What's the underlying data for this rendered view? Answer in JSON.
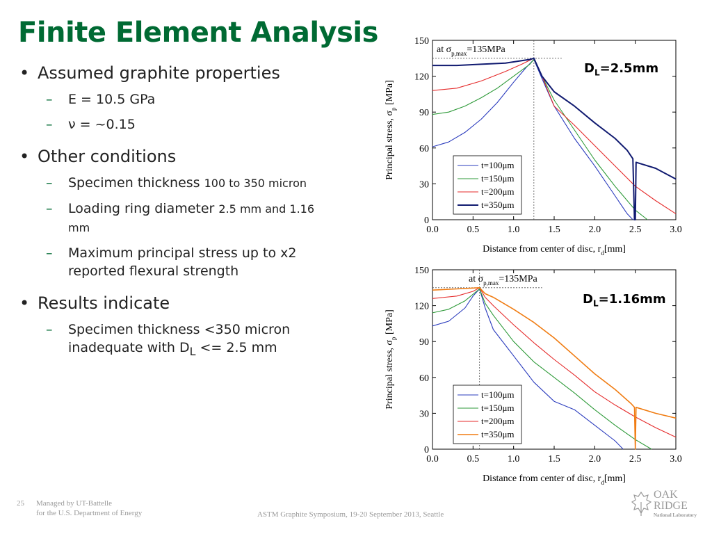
{
  "slide": {
    "title": "Finite Element Analysis",
    "page_number": "25",
    "managed_by": "Managed by UT-Battelle",
    "managed_by_2": "for the U.S. Department of Energy",
    "conference": "ASTM Graphite Symposium, 19-20 September 2013, Seattle",
    "logo": {
      "line1": "OAK",
      "line2": "RIDGE",
      "line3": "National Laboratory"
    }
  },
  "bullets": [
    {
      "text": "Assumed graphite properties",
      "subs": [
        {
          "text": "E = 10.5 GPa"
        },
        {
          "text": "ν = ~0.15"
        }
      ]
    },
    {
      "text": "Other conditions",
      "subs": [
        {
          "text": "Specimen thickness ",
          "small": "100 to 350 micron"
        },
        {
          "text": "Loading ring diameter ",
          "small": "2.5 mm and 1.16 mm"
        },
        {
          "text": "Maximum principal stress up to x2 reported flexural strength"
        }
      ]
    },
    {
      "text": "Results indicate",
      "subs": [
        {
          "text": "Specimen thickness <350 micron inadequate with D",
          "sub": "L",
          "after": " <= 2.5 mm"
        }
      ]
    }
  ],
  "chart_data": [
    {
      "type": "line",
      "label": {
        "main": "D",
        "sub": "L",
        "rest": "=2.5mm"
      },
      "xlabel": "Distance from center of disc, r",
      "xlabel_sub": "d",
      "xlabel_after": "[mm]",
      "ylabel": "Principal stress, σ",
      "ylabel_sub": "p",
      "ylabel_after": " [MPa]",
      "xlim": [
        0,
        3
      ],
      "ylim": [
        0,
        150
      ],
      "xticks": [
        "0.0",
        "0.5",
        "1.0",
        "1.5",
        "2.0",
        "2.5",
        "3.0"
      ],
      "yticks": [
        "0",
        "30",
        "60",
        "90",
        "120",
        "150"
      ],
      "annotation": {
        "prefix": "at σ",
        "sub": "p,max",
        "suffix": "=135MPa",
        "value": 135,
        "x": 1.25
      },
      "series": [
        {
          "name": "t=100μm",
          "color": "#2a3bbd",
          "points": [
            [
              0,
              61
            ],
            [
              0.2,
              65
            ],
            [
              0.4,
              73
            ],
            [
              0.6,
              84
            ],
            [
              0.8,
              98
            ],
            [
              1.0,
              115
            ],
            [
              1.15,
              127
            ],
            [
              1.25,
              134
            ],
            [
              1.35,
              118
            ],
            [
              1.5,
              95
            ],
            [
              1.75,
              68
            ],
            [
              2.0,
              45
            ],
            [
              2.2,
              25
            ],
            [
              2.4,
              5
            ],
            [
              2.47,
              0
            ]
          ]
        },
        {
          "name": "t=150μm",
          "color": "#2e9a39",
          "points": [
            [
              0,
              88
            ],
            [
              0.2,
              90
            ],
            [
              0.4,
              95
            ],
            [
              0.6,
              102
            ],
            [
              0.8,
              110
            ],
            [
              1.0,
              120
            ],
            [
              1.2,
              130
            ],
            [
              1.25,
              134
            ],
            [
              1.35,
              120
            ],
            [
              1.5,
              100
            ],
            [
              1.75,
              75
            ],
            [
              2.0,
              50
            ],
            [
              2.25,
              28
            ],
            [
              2.5,
              8
            ],
            [
              2.65,
              0
            ]
          ]
        },
        {
          "name": "t=200μm",
          "color": "#e52a2a",
          "points": [
            [
              0,
              108
            ],
            [
              0.3,
              110
            ],
            [
              0.6,
              116
            ],
            [
              0.9,
              124
            ],
            [
              1.1,
              130
            ],
            [
              1.25,
              135
            ],
            [
              1.35,
              120
            ],
            [
              1.5,
              95
            ],
            [
              1.75,
              79
            ],
            [
              2.0,
              62
            ],
            [
              2.25,
              45
            ],
            [
              2.5,
              28
            ],
            [
              2.75,
              16
            ],
            [
              3.0,
              5
            ]
          ]
        },
        {
          "name": "t=350μm",
          "color": "#101a70",
          "points": [
            [
              0,
              129
            ],
            [
              0.3,
              129
            ],
            [
              0.6,
              130
            ],
            [
              0.9,
              131
            ],
            [
              1.1,
              133
            ],
            [
              1.2,
              134
            ],
            [
              1.25,
              135
            ],
            [
              1.35,
              120
            ],
            [
              1.5,
              107
            ],
            [
              1.75,
              95
            ],
            [
              2.0,
              81
            ],
            [
              2.25,
              68
            ],
            [
              2.4,
              58
            ],
            [
              2.47,
              51
            ],
            [
              2.49,
              0
            ],
            [
              2.5,
              0
            ],
            [
              2.51,
              48
            ],
            [
              2.75,
              43
            ],
            [
              3.0,
              34
            ]
          ]
        }
      ]
    },
    {
      "type": "line",
      "label": {
        "main": "D",
        "sub": "L",
        "rest": "=1.16mm"
      },
      "xlabel": "Distance from center of disc, r",
      "xlabel_sub": "d",
      "xlabel_after": "[mm]",
      "ylabel": "Principal stress, σ",
      "ylabel_sub": "p",
      "ylabel_after": " [MPa]",
      "xlim": [
        0,
        3
      ],
      "ylim": [
        0,
        150
      ],
      "xticks": [
        "0.0",
        "0.5",
        "1.0",
        "1.5",
        "2.0",
        "2.5",
        "3.0"
      ],
      "yticks": [
        "0",
        "30",
        "60",
        "90",
        "120",
        "150"
      ],
      "annotation": {
        "prefix": "at σ",
        "sub": "p,max",
        "suffix": "=135MPa",
        "value": 135,
        "x": 0.58
      },
      "series": [
        {
          "name": "t=100μm",
          "color": "#2a3bbd",
          "points": [
            [
              0,
              103
            ],
            [
              0.2,
              107
            ],
            [
              0.4,
              118
            ],
            [
              0.5,
              128
            ],
            [
              0.58,
              134
            ],
            [
              0.65,
              118
            ],
            [
              0.75,
              100
            ],
            [
              1.0,
              78
            ],
            [
              1.25,
              56
            ],
            [
              1.5,
              40
            ],
            [
              1.75,
              33
            ],
            [
              2.0,
              20
            ],
            [
              2.25,
              7
            ],
            [
              2.35,
              0
            ]
          ]
        },
        {
          "name": "t=150μm",
          "color": "#2e9a39",
          "points": [
            [
              0,
              114
            ],
            [
              0.2,
              117
            ],
            [
              0.4,
              124
            ],
            [
              0.58,
              134
            ],
            [
              0.65,
              122
            ],
            [
              0.75,
              112
            ],
            [
              1.0,
              90
            ],
            [
              1.25,
              73
            ],
            [
              1.5,
              60
            ],
            [
              1.75,
              47
            ],
            [
              2.0,
              33
            ],
            [
              2.25,
              20
            ],
            [
              2.5,
              8
            ],
            [
              2.7,
              0
            ]
          ]
        },
        {
          "name": "t=200μm",
          "color": "#e52a2a",
          "points": [
            [
              0,
              126
            ],
            [
              0.3,
              128
            ],
            [
              0.5,
              132
            ],
            [
              0.58,
              135
            ],
            [
              0.65,
              127
            ],
            [
              0.75,
              120
            ],
            [
              1.0,
              104
            ],
            [
              1.25,
              89
            ],
            [
              1.5,
              75
            ],
            [
              1.75,
              62
            ],
            [
              2.0,
              48
            ],
            [
              2.25,
              37
            ],
            [
              2.5,
              27
            ],
            [
              2.75,
              18
            ],
            [
              3.0,
              10
            ]
          ]
        },
        {
          "name": "t=350μm",
          "color": "#f07c12",
          "points": [
            [
              0,
              133
            ],
            [
              0.3,
              134
            ],
            [
              0.58,
              135
            ],
            [
              0.65,
              130
            ],
            [
              0.75,
              127
            ],
            [
              1.0,
              117
            ],
            [
              1.25,
              106
            ],
            [
              1.5,
              93
            ],
            [
              1.75,
              78
            ],
            [
              2.0,
              63
            ],
            [
              2.25,
              50
            ],
            [
              2.45,
              38
            ],
            [
              2.49,
              35
            ],
            [
              2.5,
              0
            ],
            [
              2.51,
              35
            ],
            [
              2.75,
              30
            ],
            [
              3.0,
              26
            ]
          ]
        }
      ]
    }
  ]
}
